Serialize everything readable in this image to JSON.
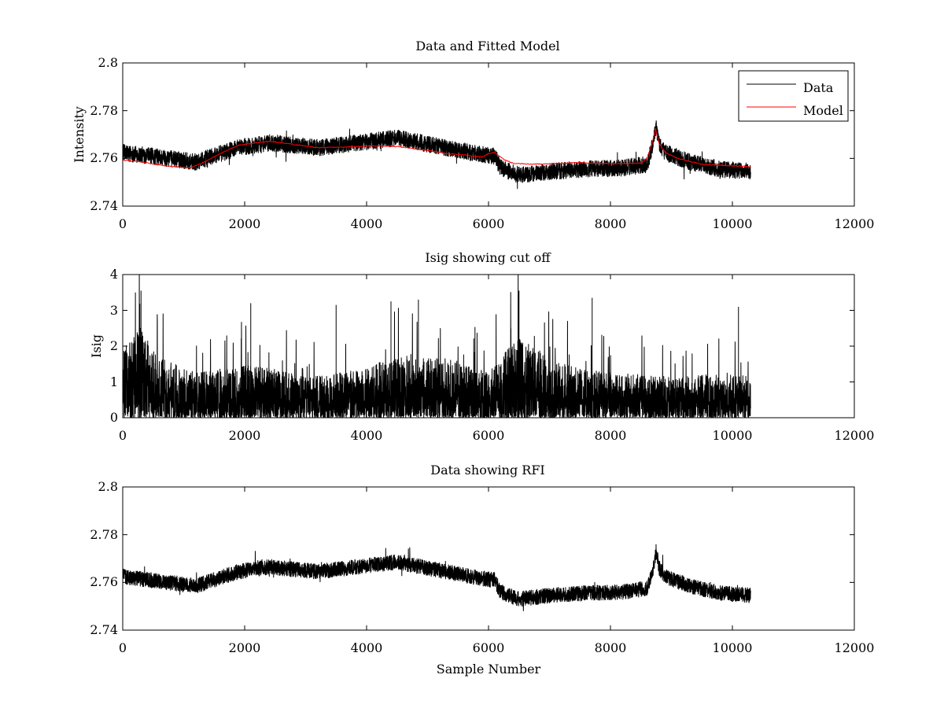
{
  "figure": {
    "background": "#ffffff"
  },
  "chart_data": [
    {
      "id": "top",
      "type": "line",
      "title": "Data and Fitted Model",
      "xlabel": "",
      "ylabel": "Intensity",
      "xlim": [
        0,
        12000
      ],
      "ylim": [
        2.74,
        2.8
      ],
      "xticks": [
        "0",
        "2000",
        "4000",
        "6000",
        "8000",
        "10000",
        "12000"
      ],
      "yticks": [
        "2.74",
        "2.76",
        "2.78",
        "2.8"
      ],
      "legend": {
        "position": "top-right",
        "entries": [
          "Data",
          "Model"
        ]
      },
      "series": [
        {
          "name": "Data",
          "color": "#000000",
          "kind": "noisy",
          "n_samples": 10300,
          "noise_amplitude": 0.0035,
          "baseline": {
            "x": [
              0,
              600,
              1200,
              1900,
              2400,
              3200,
              4000,
              4500,
              5200,
              5800,
              6100,
              6200,
              6500,
              7000,
              7600,
              8200,
              8600,
              8700,
              8750,
              8800,
              8900,
              9300,
              9800,
              10300
            ],
            "y": [
              2.7625,
              2.7605,
              2.7585,
              2.7645,
              2.7665,
              2.7645,
              2.767,
              2.7685,
              2.765,
              2.762,
              2.761,
              2.756,
              2.753,
              2.7545,
              2.7555,
              2.756,
              2.7575,
              2.766,
              2.773,
              2.766,
              2.7625,
              2.7585,
              2.7555,
              2.7545
            ]
          }
        },
        {
          "name": "Model",
          "color": "#ff0000",
          "kind": "smooth",
          "x": [
            0,
            300,
            700,
            1100,
            1300,
            1600,
            1900,
            2400,
            2700,
            3200,
            3700,
            4000,
            4500,
            4800,
            5100,
            5300,
            5600,
            5900,
            6000,
            6100,
            6250,
            6400,
            6700,
            7000,
            7500,
            8000,
            8500,
            8600,
            8680,
            8740,
            8800,
            8900,
            9100,
            9500,
            10300
          ],
          "y": [
            2.7592,
            2.7585,
            2.7568,
            2.756,
            2.758,
            2.762,
            2.7655,
            2.7672,
            2.7662,
            2.7645,
            2.7648,
            2.7652,
            2.765,
            2.764,
            2.763,
            2.762,
            2.7615,
            2.7605,
            2.762,
            2.7625,
            2.7595,
            2.758,
            2.7575,
            2.7578,
            2.7582,
            2.7578,
            2.758,
            2.76,
            2.766,
            2.7725,
            2.766,
            2.7625,
            2.76,
            2.7575,
            2.7565
          ]
        }
      ]
    },
    {
      "id": "middle",
      "type": "line",
      "title": "Isig showing cut off",
      "xlabel": "",
      "ylabel": "Isig",
      "xlim": [
        0,
        12000
      ],
      "ylim": [
        0,
        4
      ],
      "xticks": [
        "0",
        "2000",
        "4000",
        "6000",
        "8000",
        "10000",
        "12000"
      ],
      "yticks": [
        "0",
        "1",
        "2",
        "3",
        "4"
      ],
      "series": [
        {
          "name": "Isig",
          "color": "#000000",
          "kind": "spiky",
          "n_samples": 10300,
          "envelope": {
            "x": [
              0,
              300,
              600,
              1200,
              2000,
              2500,
              3000,
              3500,
              4000,
              4500,
              5000,
              5500,
              6000,
              6200,
              6500,
              7000,
              7500,
              8000,
              9000,
              10000,
              10300
            ],
            "y": [
              1.8,
              2.4,
              1.6,
              1.2,
              1.4,
              1.3,
              1.1,
              1.2,
              1.3,
              1.7,
              1.7,
              1.5,
              1.2,
              1.6,
              2.2,
              1.6,
              1.3,
              1.2,
              1.1,
              1.2,
              1.1
            ]
          },
          "peaks": {
            "x": [
              300,
              2100,
              3500,
              4400,
              4850,
              6500,
              7700,
              10100
            ],
            "y": [
              3.55,
              3.2,
              3.15,
              3.25,
              3.3,
              3.55,
              3.35,
              3.1
            ]
          }
        }
      ]
    },
    {
      "id": "bottom",
      "type": "line",
      "title": "Data showing RFI",
      "xlabel": "Sample Number",
      "ylabel": "",
      "xlim": [
        0,
        12000
      ],
      "ylim": [
        2.74,
        2.8
      ],
      "xticks": [
        "0",
        "2000",
        "4000",
        "6000",
        "8000",
        "10000",
        "12000"
      ],
      "yticks": [
        "2.74",
        "2.76",
        "2.78",
        "2.8"
      ],
      "series": [
        {
          "name": "Data",
          "color": "#000000",
          "kind": "noisy",
          "n_samples": 10300,
          "noise_amplitude": 0.0032,
          "baseline": {
            "x": [
              0,
              600,
              1200,
              1900,
              2400,
              3200,
              4000,
              4500,
              5200,
              5800,
              6100,
              6200,
              6500,
              7000,
              7600,
              8200,
              8600,
              8700,
              8750,
              8800,
              8900,
              9300,
              9800,
              10300
            ],
            "y": [
              2.7625,
              2.7605,
              2.7585,
              2.7645,
              2.7665,
              2.7645,
              2.767,
              2.7685,
              2.765,
              2.762,
              2.761,
              2.756,
              2.753,
              2.7545,
              2.7555,
              2.756,
              2.7575,
              2.766,
              2.773,
              2.766,
              2.7625,
              2.7585,
              2.7555,
              2.7545
            ]
          }
        }
      ]
    }
  ]
}
